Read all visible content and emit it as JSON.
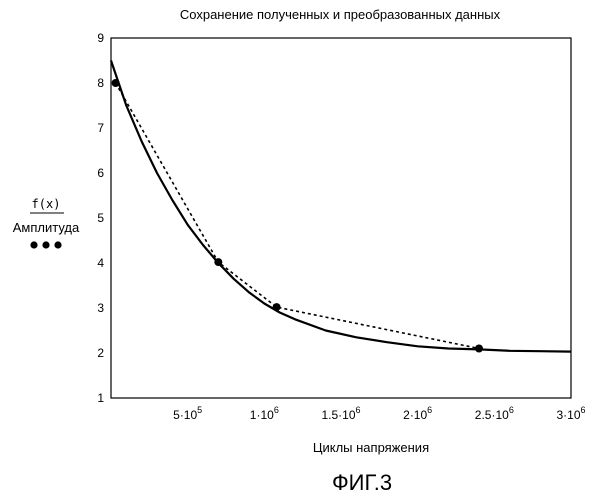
{
  "chart_data": {
    "type": "line",
    "title": "Сохранение полученных и преобразованных данных",
    "xlabel": "Циклы напряжения",
    "ylabel_top": "f(x)",
    "ylabel_bottom": "Амплитуда",
    "xlim": [
      0,
      3000000
    ],
    "ylim": [
      1,
      9
    ],
    "yticks": [
      "1",
      "2",
      "3",
      "4",
      "5",
      "6",
      "7",
      "8",
      "9"
    ],
    "xticks": [
      {
        "value": 500000,
        "mant": "5",
        "exp": "5"
      },
      {
        "value": 1000000,
        "mant": "1",
        "exp": "6"
      },
      {
        "value": 1500000,
        "mant": "1.5",
        "exp": "6"
      },
      {
        "value": 2000000,
        "mant": "2",
        "exp": "6"
      },
      {
        "value": 2500000,
        "mant": "2.5",
        "exp": "6"
      },
      {
        "value": 3000000,
        "mant": "3",
        "exp": "6"
      }
    ],
    "tick_base": "10",
    "grid": false,
    "series": [
      {
        "style": "solid",
        "x": [
          0,
          100000,
          200000,
          300000,
          400000,
          500000,
          600000,
          700000,
          800000,
          900000,
          1000000,
          1100000,
          1200000,
          1400000,
          1600000,
          1800000,
          2000000,
          2200000,
          2400000,
          2600000,
          2800000,
          3000000
        ],
        "y": [
          8.5,
          7.5,
          6.7,
          6.0,
          5.4,
          4.85,
          4.4,
          4.0,
          3.65,
          3.35,
          3.1,
          2.9,
          2.75,
          2.5,
          2.35,
          2.24,
          2.15,
          2.1,
          2.08,
          2.05,
          2.04,
          2.03
        ]
      },
      {
        "style": "dotted",
        "markers": true,
        "x": [
          30000,
          700000,
          1080000,
          2400000
        ],
        "y": [
          8.0,
          4.02,
          3.02,
          2.1
        ]
      }
    ]
  },
  "caption": "ФИГ.3"
}
